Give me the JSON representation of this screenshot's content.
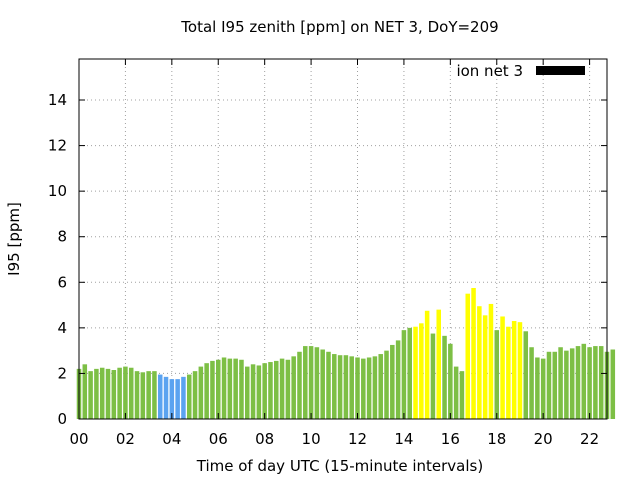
{
  "chart_data": {
    "type": "bar",
    "title": "Total I95 zenith [ppm] on NET 3, DoY=209",
    "xlabel": "Time of day UTC (15-minute intervals)",
    "ylabel": "I95 [ppm]",
    "xlim": [
      0,
      22.75
    ],
    "ylim": [
      0,
      15.8
    ],
    "grid": true,
    "legend_position": "top-right",
    "x_ticks": [
      "00",
      "02",
      "04",
      "06",
      "08",
      "10",
      "12",
      "14",
      "16",
      "18",
      "20",
      "22"
    ],
    "y_ticks": [
      "0",
      "2",
      "4",
      "6",
      "8",
      "10",
      "12",
      "14"
    ],
    "series": [
      {
        "name": "ion net 3",
        "color": "#000000",
        "values": [
          2.2,
          2.4,
          2.1,
          2.2,
          2.25,
          2.2,
          2.15,
          2.25,
          2.3,
          2.25,
          2.1,
          2.05,
          2.1,
          2.1,
          1.95,
          1.85,
          1.75,
          1.75,
          1.85,
          1.95,
          2.1,
          2.3,
          2.45,
          2.55,
          2.6,
          2.7,
          2.65,
          2.65,
          2.6,
          2.3,
          2.4,
          2.35,
          2.45,
          2.5,
          2.55,
          2.65,
          2.6,
          2.75,
          2.95,
          3.2,
          3.2,
          3.15,
          3.05,
          2.95,
          2.85,
          2.8,
          2.8,
          2.75,
          2.7,
          2.65,
          2.7,
          2.75,
          2.85,
          3.0,
          3.25,
          3.45,
          3.9,
          4.0,
          4.05,
          4.2,
          4.75,
          3.75,
          4.8,
          3.65,
          3.3,
          2.3,
          2.1,
          5.5,
          5.75,
          4.95,
          4.55,
          5.05,
          3.9,
          4.5,
          4.05,
          4.3,
          4.25,
          3.85,
          3.15,
          2.7,
          2.65,
          2.95,
          2.95,
          3.15,
          3.0,
          3.1,
          3.2,
          3.3,
          3.15,
          3.2,
          3.2,
          2.95,
          3.05
        ]
      }
    ],
    "bar_status": [
      "green",
      "green",
      "green",
      "green",
      "green",
      "green",
      "green",
      "green",
      "green",
      "green",
      "green",
      "green",
      "green",
      "green",
      "blue",
      "blue",
      "blue",
      "blue",
      "blue",
      "green",
      "green",
      "green",
      "green",
      "green",
      "green",
      "green",
      "green",
      "green",
      "green",
      "green",
      "green",
      "green",
      "green",
      "green",
      "green",
      "green",
      "green",
      "green",
      "green",
      "green",
      "green",
      "green",
      "green",
      "green",
      "green",
      "green",
      "green",
      "green",
      "green",
      "green",
      "green",
      "green",
      "green",
      "green",
      "green",
      "green",
      "green",
      "green",
      "yellow",
      "yellow",
      "yellow",
      "green",
      "yellow",
      "green",
      "green",
      "green",
      "green",
      "yellow",
      "yellow",
      "yellow",
      "yellow",
      "yellow",
      "green",
      "yellow",
      "yellow",
      "yellow",
      "yellow",
      "green",
      "green",
      "green",
      "green",
      "green",
      "green",
      "green",
      "green",
      "green",
      "green",
      "green",
      "green",
      "green",
      "green",
      "green",
      "green"
    ],
    "colors": {
      "green": "#7dbf45",
      "blue": "#5ba3f0",
      "yellow": "#ffff00",
      "grid": "#a0a0a0",
      "axis": "#000000"
    }
  }
}
